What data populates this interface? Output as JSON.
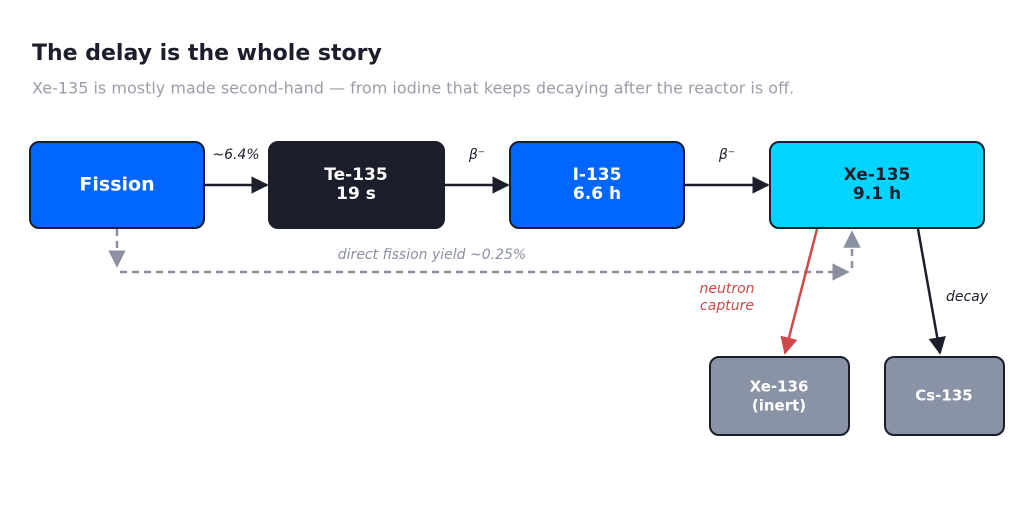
{
  "header": {
    "title": "The delay is the whole story",
    "subtitle": "Xe-135 is mostly made second-hand — from iodine that keeps decaying after the reactor is off."
  },
  "nodes": [
    {
      "lines": [
        "Fission"
      ]
    },
    {
      "lines": [
        "Te-135",
        "19 s"
      ]
    },
    {
      "lines": [
        "I-135",
        "6.6 h"
      ]
    },
    {
      "lines": [
        "Xe-135",
        "9.1 h"
      ]
    },
    {
      "lines": [
        "Xe-136",
        "(inert)"
      ]
    },
    {
      "lines": [
        "Cs-135"
      ]
    }
  ],
  "edges": [
    {
      "label": "~6.4%"
    },
    {
      "label": "β⁻"
    },
    {
      "label": "β⁻"
    },
    {
      "label": "direct fission yield ~0.25%"
    },
    {
      "lines": [
        "neutron",
        "capture"
      ]
    },
    {
      "label": "decay"
    }
  ]
}
